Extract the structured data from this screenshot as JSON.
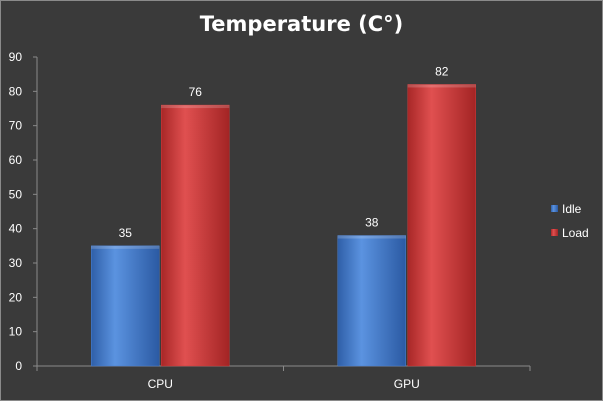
{
  "chart_data": {
    "type": "bar",
    "title": "Temperature (C°)",
    "categories": [
      "CPU",
      "GPU"
    ],
    "series": [
      {
        "name": "Idle",
        "values": [
          35,
          38
        ],
        "color": "#4a7fcf"
      },
      {
        "name": "Load",
        "values": [
          76,
          82
        ],
        "color": "#cc3b3b"
      }
    ],
    "ylim": [
      0,
      90
    ],
    "yticks": [
      0,
      10,
      20,
      30,
      40,
      50,
      60,
      70,
      80,
      90
    ],
    "legend_position": "right",
    "grid": false,
    "background": "#3a3a3a"
  }
}
